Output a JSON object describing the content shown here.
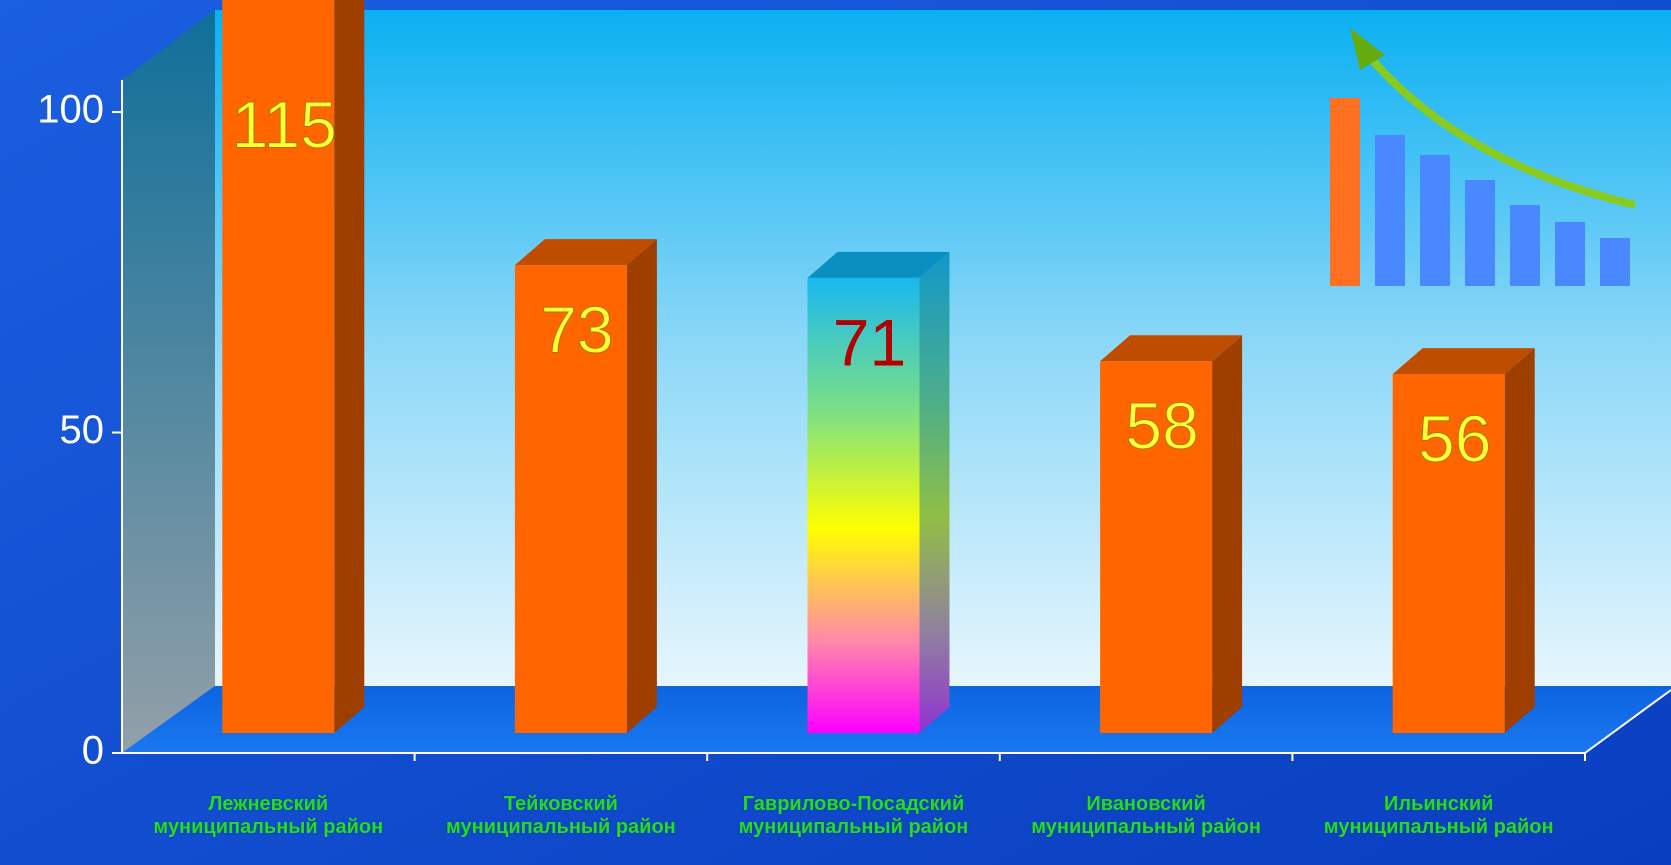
{
  "chart_data": {
    "type": "bar3d",
    "categories": [
      "Лежневский муниципальный район",
      "Тейковский муниципальный район",
      "Гаврилово-Посадский муниципальный район",
      "Ивановский муниципальный район",
      "Ильинский муниципальный район"
    ],
    "values": [
      115,
      73,
      71,
      58,
      56
    ],
    "colors": [
      "#ff6600",
      "#ff6600",
      "#ffff00",
      "#ff6600",
      "#ff6600"
    ],
    "ylim": [
      0,
      105
    ],
    "yticks": [
      0,
      50,
      100
    ]
  }
}
